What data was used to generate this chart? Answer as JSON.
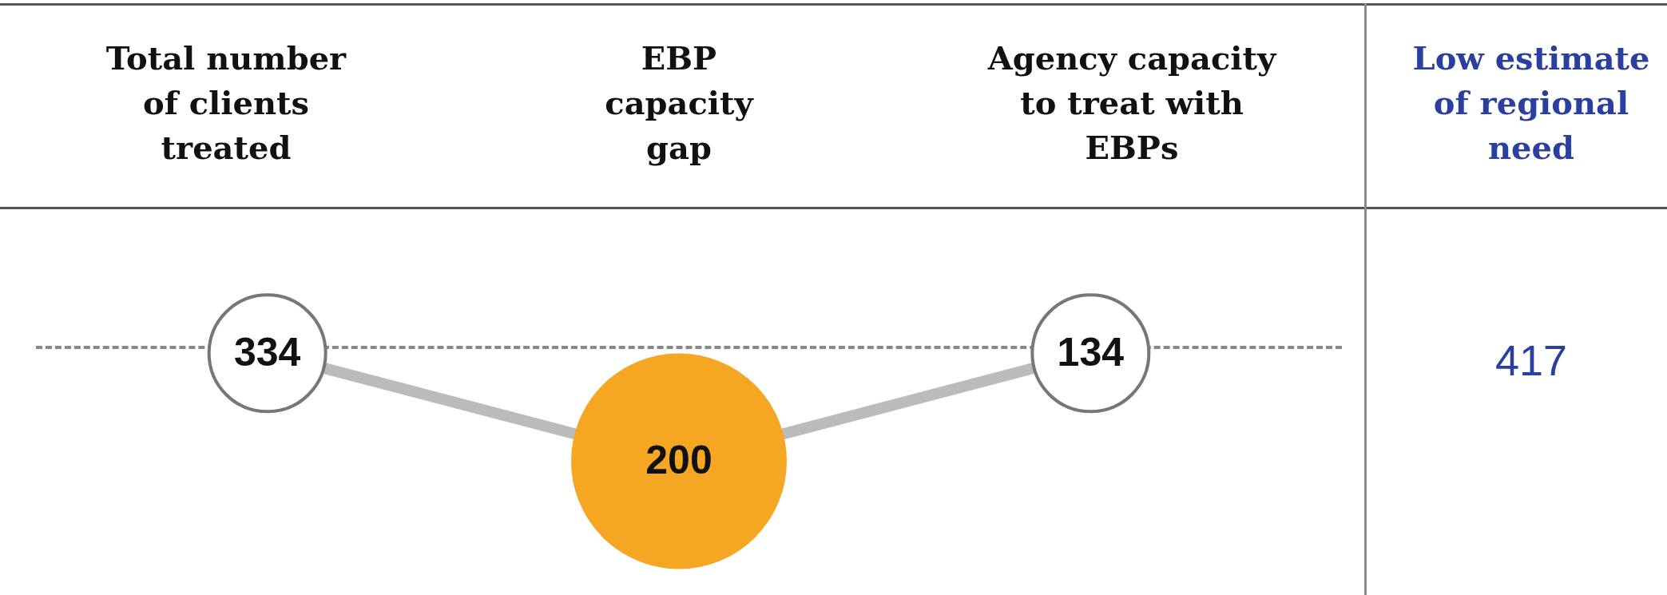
{
  "chart_data": {
    "type": "other",
    "categories": [
      "Total number\nof clients\ntreated",
      "EBP\ncapacity\ngap",
      "Agency capacity\nto treat with\nEBPs"
    ],
    "values": [
      334,
      200,
      134
    ],
    "colors": [
      "#ffffff",
      "#f5a623",
      "#ffffff"
    ],
    "data_labels": true,
    "legend": false,
    "annotations": [
      "Low estimate\nof regional\nneed",
      "417"
    ]
  }
}
